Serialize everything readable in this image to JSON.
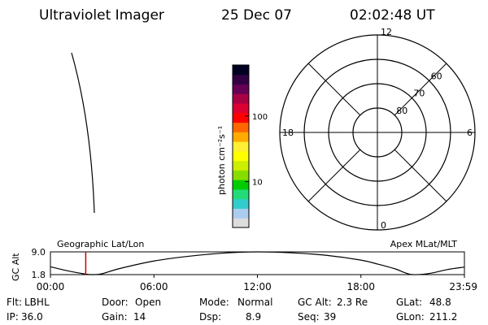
{
  "header": {
    "instrument": "Ultraviolet Imager",
    "date": "25 Dec 07",
    "time": "02:02:48 UT"
  },
  "colorbar": {
    "label": "photon cm⁻²s⁻¹",
    "scale": "log",
    "range": [
      2,
      600
    ],
    "ticks": [
      {
        "value": 100,
        "label": "100"
      },
      {
        "value": 10,
        "label": "10"
      }
    ],
    "colors": [
      "#dcdcdc",
      "#aaccee",
      "#33cccc",
      "#22dd77",
      "#00cc00",
      "#88dd00",
      "#ccee00",
      "#ffff00",
      "#ffee33",
      "#ffaa00",
      "#ff6600",
      "#ff0000",
      "#dd0033",
      "#aa0044",
      "#660055",
      "#330044",
      "#000022"
    ]
  },
  "polar_plot": {
    "mlt_labels": [
      {
        "angle": 0,
        "label": "12"
      },
      {
        "angle": 90,
        "label": "6"
      },
      {
        "angle": 180,
        "label": "0"
      },
      {
        "angle": 270,
        "label": "18"
      }
    ],
    "lat_rings": [
      {
        "lat": 80,
        "label": "80"
      },
      {
        "lat": 70,
        "label": "70"
      },
      {
        "lat": 60,
        "label": "60"
      }
    ],
    "outer_lat": 50
  },
  "orbit_plot": {
    "ylabel": "GC Alt",
    "yticks": [
      "9.0",
      "1.8"
    ],
    "ylim": [
      1.8,
      9.0
    ],
    "xticks": [
      "00:00",
      "06:00",
      "12:00",
      "18:00",
      "23:59"
    ],
    "left_title": "Geographic Lat/Lon",
    "right_title": "Apex MLat/MLT",
    "marker_hour": 2.047,
    "marker_color": "#cc0000"
  },
  "chart_data": {
    "type": "line",
    "title": "",
    "xlabel": "",
    "ylabel": "GC Alt",
    "xlim": [
      0,
      24
    ],
    "ylim": [
      1.8,
      9.0
    ],
    "x": [
      0,
      1,
      2,
      2.5,
      3,
      4,
      6,
      8,
      10,
      12,
      14,
      16,
      18,
      19,
      20,
      20.5,
      21,
      22,
      23,
      24
    ],
    "y": [
      4.3,
      3.0,
      2.0,
      1.8,
      2.1,
      3.7,
      6.1,
      7.6,
      8.6,
      9.0,
      8.7,
      7.9,
      6.4,
      5.1,
      3.6,
      2.5,
      1.8,
      2.2,
      3.4,
      4.2
    ]
  },
  "info": {
    "rows": [
      [
        {
          "label": "Flt:",
          "value": "LBHL"
        },
        {
          "label": "Door:",
          "value": "Open"
        },
        {
          "label": "Mode:",
          "value": "Normal"
        },
        {
          "label": "GC Alt:",
          "value": "2.3 Re"
        },
        {
          "label": "GLat:",
          "value": "48.8"
        }
      ],
      [
        {
          "label": "IP:",
          "value": "36.0"
        },
        {
          "label": "Gain:",
          "value": "14"
        },
        {
          "label": "Dsp:",
          "value": "8.9"
        },
        {
          "label": "Seq:",
          "value": "39"
        },
        {
          "label": "GLon:",
          "value": "211.2"
        }
      ]
    ]
  }
}
